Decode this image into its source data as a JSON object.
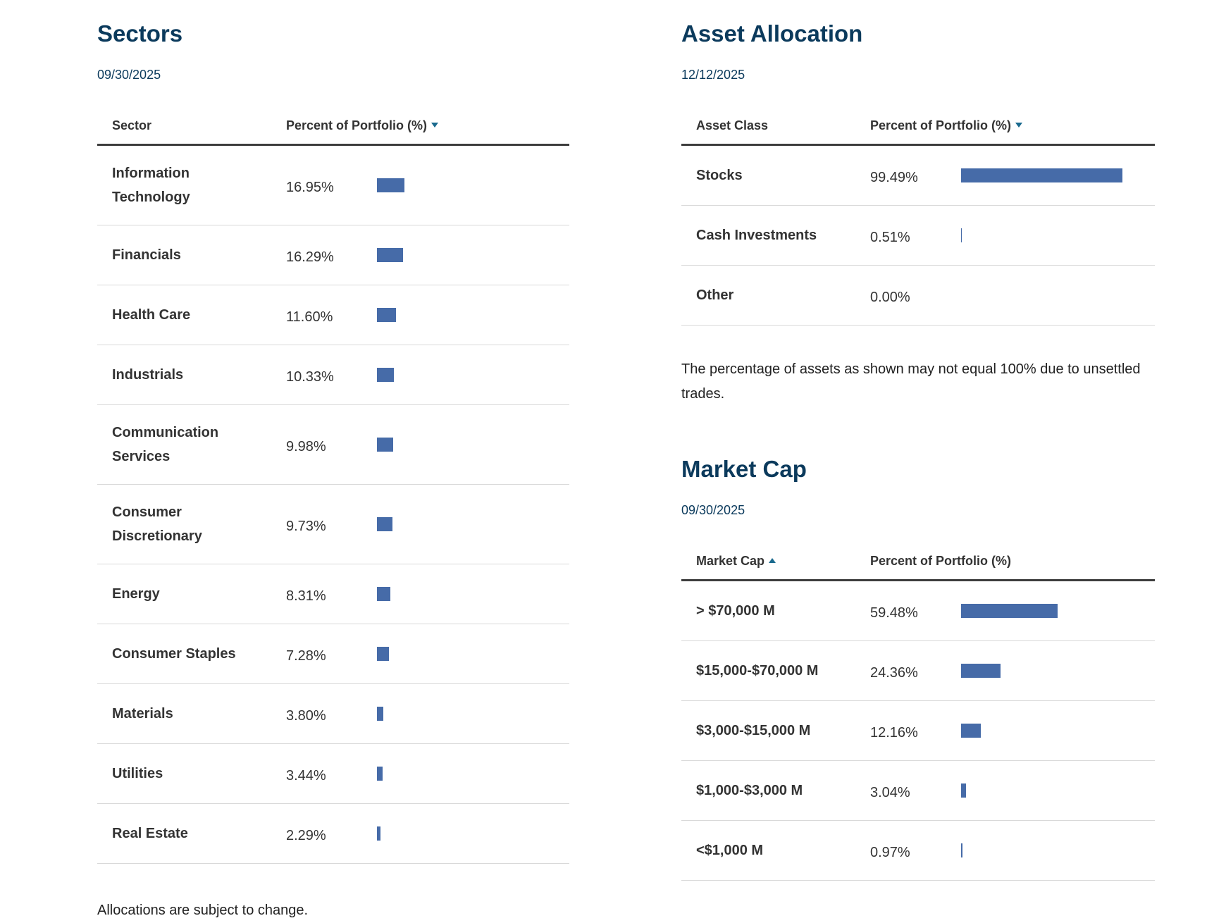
{
  "sectors": {
    "title": "Sectors",
    "date": "09/30/2025",
    "columns": [
      "Sector",
      "Percent of Portfolio (%)"
    ],
    "sort_column": 1,
    "sort_dir": "desc",
    "rows": [
      {
        "name": "Information Technology",
        "value": 16.95,
        "value_label": "16.95%"
      },
      {
        "name": "Financials",
        "value": 16.29,
        "value_label": "16.29%"
      },
      {
        "name": "Health Care",
        "value": 11.6,
        "value_label": "11.60%"
      },
      {
        "name": "Industrials",
        "value": 10.33,
        "value_label": "10.33%"
      },
      {
        "name": "Communication Services",
        "value": 9.98,
        "value_label": "9.98%"
      },
      {
        "name": "Consumer Discretionary",
        "value": 9.73,
        "value_label": "9.73%"
      },
      {
        "name": "Energy",
        "value": 8.31,
        "value_label": "8.31%"
      },
      {
        "name": "Consumer Staples",
        "value": 7.28,
        "value_label": "7.28%"
      },
      {
        "name": "Materials",
        "value": 3.8,
        "value_label": "3.80%"
      },
      {
        "name": "Utilities",
        "value": 3.44,
        "value_label": "3.44%"
      },
      {
        "name": "Real Estate",
        "value": 2.29,
        "value_label": "2.29%"
      }
    ],
    "note": "Allocations are subject to change."
  },
  "asset_allocation": {
    "title": "Asset Allocation",
    "date": "12/12/2025",
    "columns": [
      "Asset Class",
      "Percent of Portfolio (%)"
    ],
    "sort_column": 1,
    "sort_dir": "desc",
    "rows": [
      {
        "name": "Stocks",
        "value": 99.49,
        "value_label": "99.49%"
      },
      {
        "name": "Cash Investments",
        "value": 0.51,
        "value_label": "0.51%"
      },
      {
        "name": "Other",
        "value": 0.0,
        "value_label": "0.00%"
      }
    ],
    "note": "The percentage of assets as shown may not equal 100% due to unsettled trades."
  },
  "market_cap": {
    "title": "Market Cap",
    "date": "09/30/2025",
    "columns": [
      "Market Cap",
      "Percent of Portfolio (%)"
    ],
    "sort_column": 0,
    "sort_dir": "asc",
    "rows": [
      {
        "name": "> $70,000 M",
        "value": 59.48,
        "value_label": "59.48%"
      },
      {
        "name": "$15,000-$70,000 M",
        "value": 24.36,
        "value_label": "24.36%"
      },
      {
        "name": "$3,000-$15,000 M",
        "value": 12.16,
        "value_label": "12.16%"
      },
      {
        "name": "$1,000-$3,000 M",
        "value": 3.04,
        "value_label": "3.04%"
      },
      {
        "name": "<$1,000 M",
        "value": 0.97,
        "value_label": "0.97%"
      }
    ]
  }
}
